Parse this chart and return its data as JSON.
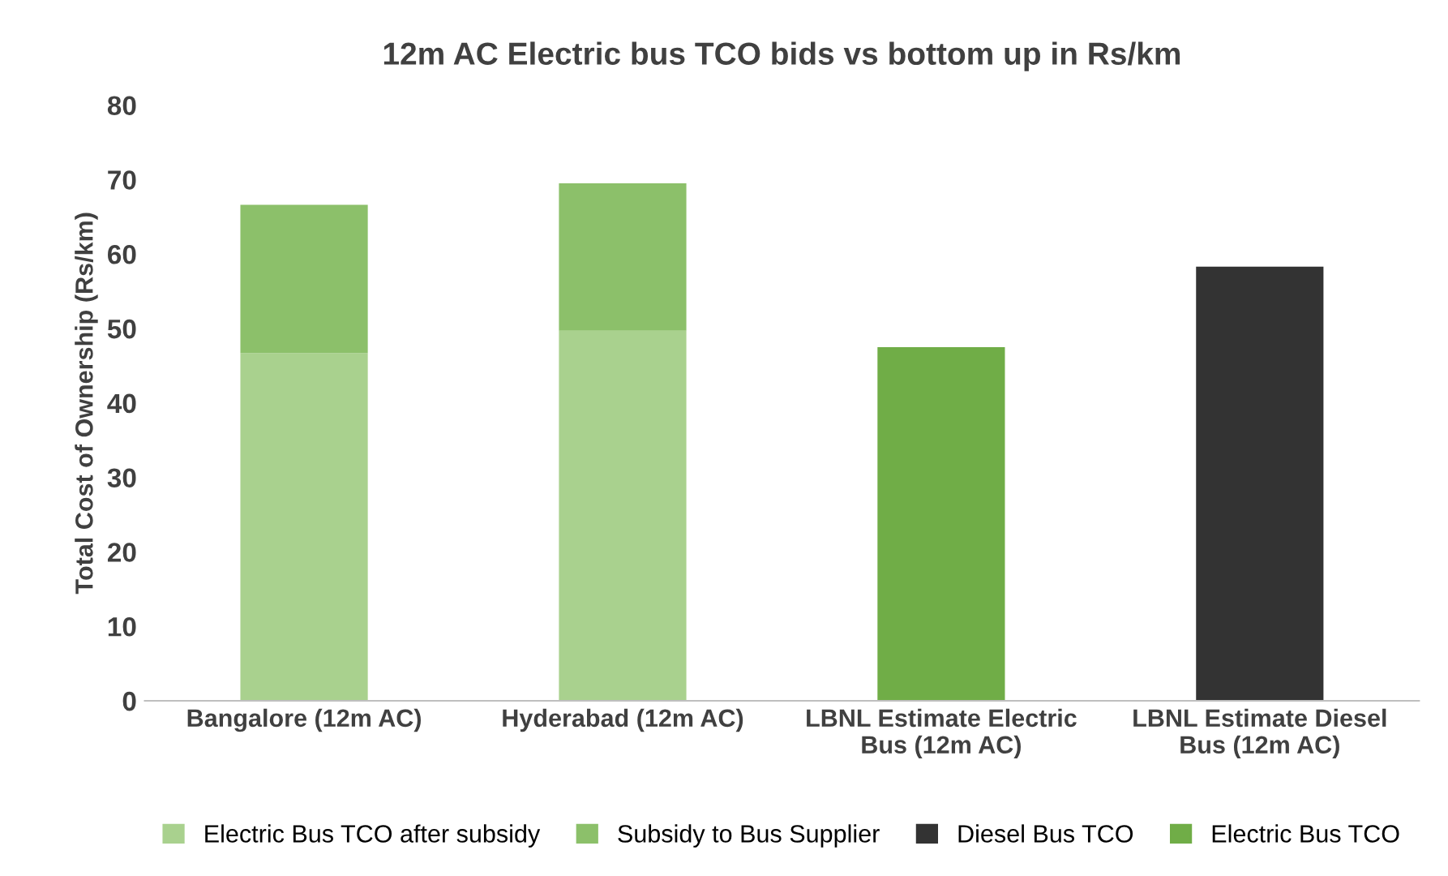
{
  "chart_data": {
    "type": "bar",
    "title": "12m AC Electric bus TCO bids vs bottom up in Rs/km",
    "ylabel": "Total Cost of Ownership (Rs/km)",
    "categories": [
      "Bangalore (12m AC)",
      "Hyderabad (12m AC)",
      "LBNL Estimate Electric\nBus (12m AC)",
      "LBNL Estimate Diesel\nBus (12m AC)"
    ],
    "stacked": true,
    "series": [
      {
        "name": "Electric Bus TCO after subsidy",
        "color": "#a9d18e",
        "values": [
          46.7,
          49.7,
          null,
          null
        ]
      },
      {
        "name": "Subsidy to Bus Supplier",
        "color": "#8cc06a",
        "values": [
          19.9,
          19.8,
          null,
          null
        ]
      },
      {
        "name": "Diesel Bus TCO",
        "color": "#333333",
        "values": [
          null,
          null,
          null,
          58.3
        ]
      },
      {
        "name": "Electric Bus TCO",
        "color": "#70ad47",
        "values": [
          null,
          null,
          47.5,
          null
        ]
      }
    ],
    "ylim": [
      0,
      80
    ],
    "yticks": [
      0,
      10,
      20,
      30,
      40,
      50,
      60,
      70,
      80
    ],
    "grid": false,
    "legend": "bottom"
  }
}
